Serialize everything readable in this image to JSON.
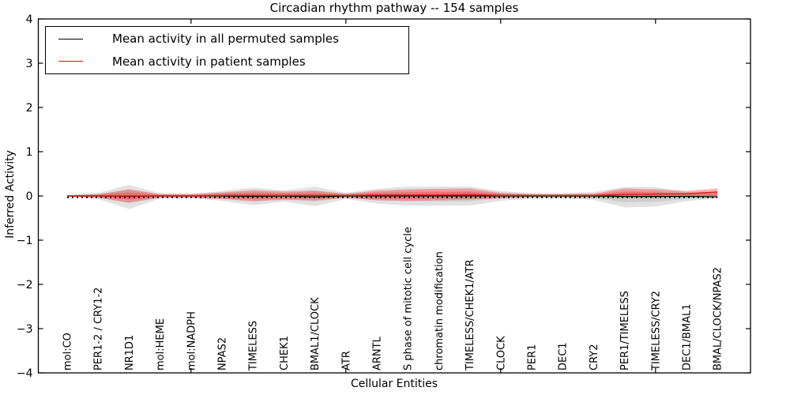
{
  "chart_data": {
    "type": "area",
    "title": "Circadian rhythm pathway -- 154 samples",
    "xlabel": "Cellular Entities",
    "ylabel": "Inferred Activity",
    "ylim": [
      -4,
      4
    ],
    "ytick_labels": [
      "−4",
      "−3",
      "−2",
      "−1",
      "0",
      "1",
      "2",
      "3",
      "4"
    ],
    "ytick_values": [
      -4,
      -3,
      -2,
      -1,
      0,
      1,
      2,
      3,
      4
    ],
    "xtick_index_positions": [
      4,
      9,
      14,
      19
    ],
    "grid": false,
    "legend_position": "upper-left",
    "legend": [
      {
        "label": "Mean activity in all permuted samples",
        "color": "#000000"
      },
      {
        "label": "Mean activity in patient samples",
        "color": "#ff0000"
      }
    ],
    "colors": {
      "permuted_band": "rgba(150,150,150,0.28)",
      "patient_band": "rgba(255,60,60,0.40)",
      "permuted_mean_line": "#000000",
      "patient_mean_line": "#cc2a2a",
      "dotted_reference_line": "#000000",
      "frame": "#000000"
    },
    "categories": [
      "mol:CO",
      "PER1-2 / CRY1-2",
      "NR1D1",
      "mol:HEME",
      "mol:NADPH",
      "NPAS2",
      "TIMELESS",
      "CHEK1",
      "BMAL1/CLOCK",
      "ATR",
      "ARNTL",
      "S phase of mitotic cell cycle",
      "chromatin modification",
      "TIMELESS/CHEK1/ATR",
      "CLOCK",
      "PER1",
      "DEC1",
      "CRY2",
      "PER1/TIMELESS",
      "TIMELESS/CRY2",
      "DEC1/BMAL1",
      "BMAL/CLOCK/NPAS2"
    ],
    "series": [
      {
        "name": "permuted_band_hi",
        "values": [
          0.02,
          0.07,
          0.25,
          0.06,
          0.05,
          0.11,
          0.19,
          0.12,
          0.21,
          0.07,
          0.16,
          0.21,
          0.21,
          0.21,
          0.11,
          0.06,
          0.06,
          0.09,
          0.2,
          0.2,
          0.09,
          0.05
        ]
      },
      {
        "name": "permuted_band_lo",
        "values": [
          -0.02,
          -0.07,
          -0.3,
          -0.06,
          -0.05,
          -0.11,
          -0.21,
          -0.13,
          -0.23,
          -0.07,
          -0.17,
          -0.22,
          -0.22,
          -0.22,
          -0.11,
          -0.06,
          -0.06,
          -0.09,
          -0.26,
          -0.24,
          -0.12,
          -0.06
        ]
      },
      {
        "name": "patient_band_hi",
        "values": [
          0.015,
          0.04,
          0.15,
          0.04,
          0.04,
          0.08,
          0.13,
          0.1,
          0.12,
          0.05,
          0.12,
          0.15,
          0.16,
          0.17,
          0.07,
          0.04,
          0.04,
          0.05,
          0.17,
          0.15,
          0.11,
          0.17
        ]
      },
      {
        "name": "patient_band_lo",
        "values": [
          -0.015,
          -0.04,
          -0.15,
          -0.04,
          -0.04,
          -0.07,
          -0.12,
          -0.09,
          -0.1,
          -0.04,
          -0.1,
          -0.11,
          -0.1,
          -0.08,
          -0.05,
          -0.03,
          -0.03,
          -0.04,
          -0.05,
          -0.05,
          -0.01,
          0.0
        ]
      },
      {
        "name": "permuted_mean",
        "values": [
          0,
          0,
          -0.01,
          0,
          0,
          0,
          -0.01,
          0,
          -0.02,
          0,
          0,
          0,
          0,
          0,
          0,
          0,
          0,
          0,
          -0.01,
          -0.01,
          -0.01,
          -0.02
        ]
      },
      {
        "name": "patient_mean",
        "values": [
          0,
          0,
          0,
          0,
          0,
          0.01,
          0.01,
          0.01,
          0.01,
          0.01,
          0.02,
          0.02,
          0.02,
          0.03,
          0.01,
          0.01,
          0.01,
          0.01,
          0.03,
          0.04,
          0.05,
          0.09
        ]
      },
      {
        "name": "zero_reference_dotted",
        "values": [
          -0.03,
          -0.03,
          -0.03,
          -0.03,
          -0.03,
          -0.03,
          -0.03,
          -0.03,
          -0.03,
          -0.03,
          -0.03,
          -0.03,
          -0.03,
          -0.03,
          -0.03,
          -0.03,
          -0.03,
          -0.03,
          -0.03,
          -0.03,
          -0.03,
          -0.03
        ]
      }
    ]
  }
}
